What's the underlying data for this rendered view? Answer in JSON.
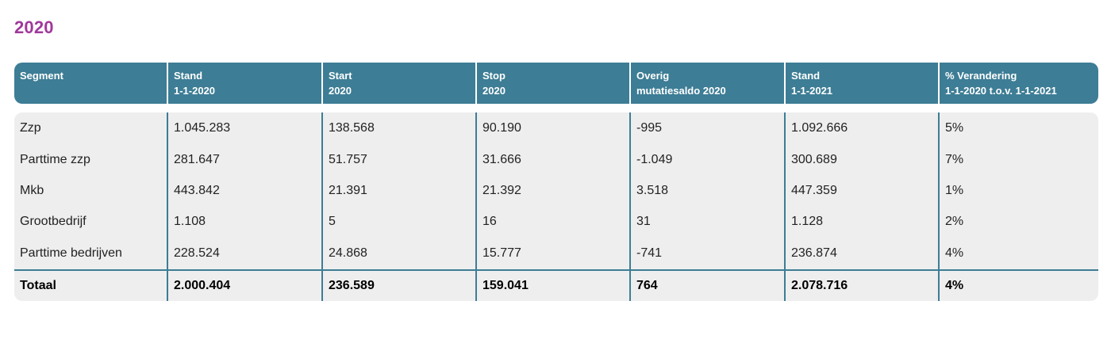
{
  "page": {
    "title": "2020"
  },
  "table": {
    "headers": [
      {
        "line1": "Segment",
        "line2": ""
      },
      {
        "line1": "Stand",
        "line2": "1-1-2020"
      },
      {
        "line1": "Start",
        "line2": "2020"
      },
      {
        "line1": "Stop",
        "line2": "2020"
      },
      {
        "line1": "Overig",
        "line2": "mutatiesaldo 2020"
      },
      {
        "line1": "Stand",
        "line2": "1-1-2021"
      },
      {
        "line1": "% Verandering",
        "line2": "1-1-2020 t.o.v. 1-1-2021"
      }
    ],
    "rows": [
      [
        "Zzp",
        "1.045.283",
        "138.568",
        "90.190",
        "-995",
        "1.092.666",
        "5%"
      ],
      [
        "Parttime zzp",
        "281.647",
        "51.757",
        "31.666",
        "-1.049",
        "300.689",
        "7%"
      ],
      [
        "Mkb",
        "443.842",
        "21.391",
        "21.392",
        "3.518",
        "447.359",
        "1%"
      ],
      [
        "Grootbedrijf",
        "1.108",
        "5",
        "16",
        "31",
        "1.128",
        "2%"
      ],
      [
        "Parttime bedrijven",
        "228.524",
        "24.868",
        "15.777",
        "-741",
        "236.874",
        "4%"
      ]
    ],
    "total": [
      "Totaal",
      "2.000.404",
      "236.589",
      "159.041",
      "764",
      "2.078.716",
      "4%"
    ]
  },
  "colors": {
    "title": "#a0399b",
    "header_bg": "#3d7d95",
    "body_bg": "#eeeeee"
  }
}
